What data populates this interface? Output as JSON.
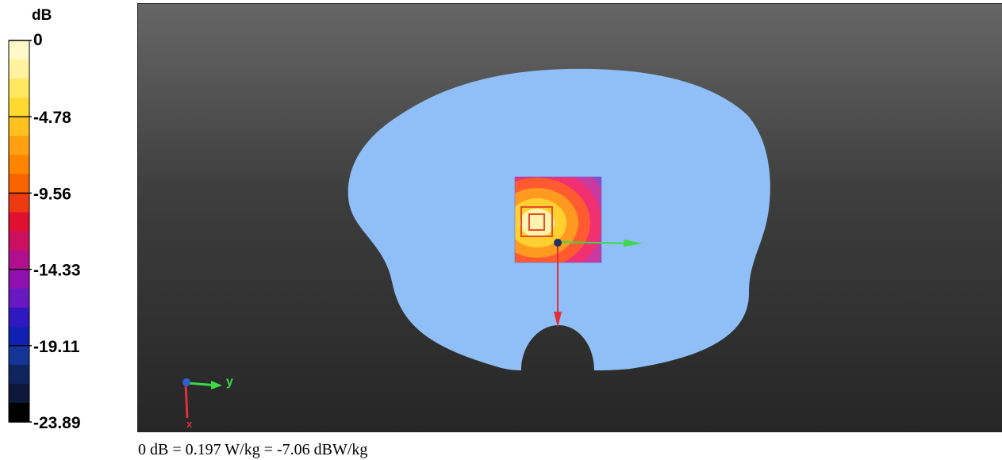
{
  "chart_data": {
    "type": "heatmap",
    "colorbar": {
      "unit": "dB",
      "ticks": [
        "0",
        "-4.78",
        "-9.56",
        "-14.33",
        "-19.11",
        "-23.89"
      ],
      "range": [
        -23.89,
        0
      ],
      "colors": [
        "#fff8c8",
        "#fff3a0",
        "#ffe860",
        "#ffd830",
        "#ffc020",
        "#ffa010",
        "#ff8400",
        "#f86400",
        "#ee3a10",
        "#e01030",
        "#cc1060",
        "#b01090",
        "#9010b0",
        "#6818c0",
        "#3018c0",
        "#1020b0",
        "#143498",
        "#102460",
        "#0c1838",
        "#000000"
      ]
    },
    "phantom_color": "#8fbff6",
    "scan_area_colors": [
      "#fff3b0",
      "#ffd030",
      "#ff9a20",
      "#ff5a30",
      "#f03070",
      "#c83aa0",
      "#8a4cc8",
      "#5d5fd8"
    ],
    "axes": {
      "x": "x",
      "y": "y"
    },
    "caption": "0 dB = 0.197 W/kg = -7.06 dBW/kg"
  }
}
